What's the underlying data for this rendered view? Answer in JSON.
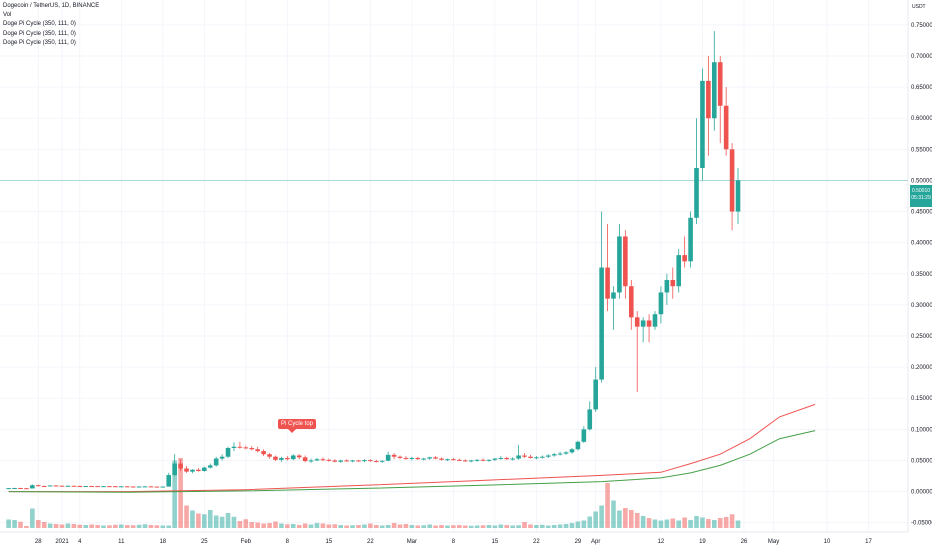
{
  "header": {
    "symbol_line": "Dogecoin / TetherUS, 1D, BINANCE",
    "indicators": [
      "Vol",
      "Doge Pi Cycle (350, 111, 0)",
      "Doge Pi Cycle (350, 111, 0)",
      "Doge Pi Cycle (350, 111, 0)"
    ]
  },
  "price_axis": {
    "unit": "USDT",
    "current_price": "0.50010",
    "countdown": "05:31:29"
  },
  "signal_label": "Pi Cycle top",
  "colors": {
    "up": "#26a69a",
    "down": "#ef5350",
    "ma_red": "#ef5350",
    "ma_green": "#43a047",
    "grid": "#f0f3fa",
    "price_line": "#26a69a"
  },
  "chart_data": {
    "type": "candlestick",
    "ylim": [
      -0.065,
      0.79
    ],
    "y_ticks": [
      "0.75000",
      "0.70000",
      "0.65000",
      "0.60000",
      "0.55000",
      "0.50000",
      "0.45000",
      "0.40000",
      "0.35000",
      "0.30000",
      "0.25000",
      "0.20000",
      "0.15000",
      "0.10000",
      "0.05000",
      "0.00000",
      "-0.05000"
    ],
    "x_ticks": [
      "28",
      "2021",
      "4",
      "11",
      "18",
      "25",
      "Feb",
      "8",
      "15",
      "22",
      "Mar",
      "8",
      "15",
      "22",
      "29",
      "Apr",
      "12",
      "19",
      "26",
      "May",
      "10",
      "17"
    ],
    "x_tick_days": [
      -4,
      0,
      3,
      10,
      17,
      24,
      31,
      38,
      45,
      52,
      59,
      66,
      73,
      80,
      87,
      90,
      101,
      108,
      115,
      120,
      129,
      136
    ],
    "candles": [
      [
        0.0048,
        0.0057,
        0.0046,
        0.0055
      ],
      [
        0.0055,
        0.0062,
        0.0051,
        0.0057
      ],
      [
        0.0057,
        0.0061,
        0.0052,
        0.0054
      ],
      [
        0.0054,
        0.0058,
        0.0048,
        0.005
      ],
      [
        0.005,
        0.0115,
        0.0049,
        0.0102
      ],
      [
        0.0102,
        0.0112,
        0.0082,
        0.009
      ],
      [
        0.009,
        0.0096,
        0.0084,
        0.0088
      ],
      [
        0.0088,
        0.0101,
        0.0086,
        0.0098
      ],
      [
        0.0098,
        0.0103,
        0.009,
        0.0094
      ],
      [
        0.0094,
        0.0097,
        0.0088,
        0.0091
      ],
      [
        0.0091,
        0.0095,
        0.0087,
        0.0093
      ],
      [
        0.0093,
        0.0096,
        0.0089,
        0.009
      ],
      [
        0.009,
        0.0094,
        0.0085,
        0.0087
      ],
      [
        0.0087,
        0.0091,
        0.0083,
        0.0089
      ],
      [
        0.0089,
        0.0093,
        0.0086,
        0.0088
      ],
      [
        0.0088,
        0.0091,
        0.0083,
        0.0085
      ],
      [
        0.0085,
        0.0089,
        0.0082,
        0.0087
      ],
      [
        0.0087,
        0.009,
        0.0084,
        0.0086
      ],
      [
        0.0086,
        0.0089,
        0.008,
        0.0082
      ],
      [
        0.0082,
        0.0086,
        0.0078,
        0.0084
      ],
      [
        0.0084,
        0.0087,
        0.008,
        0.0081
      ],
      [
        0.0081,
        0.0084,
        0.0077,
        0.0079
      ],
      [
        0.0079,
        0.0083,
        0.0075,
        0.0081
      ],
      [
        0.0081,
        0.0085,
        0.0078,
        0.0083
      ],
      [
        0.0083,
        0.0086,
        0.0079,
        0.008
      ],
      [
        0.008,
        0.0083,
        0.0076,
        0.0078
      ],
      [
        0.0078,
        0.0082,
        0.0074,
        0.008
      ],
      [
        0.008,
        0.03,
        0.0078,
        0.0265
      ],
      [
        0.0265,
        0.06,
        0.0245,
        0.045
      ],
      [
        0.045,
        0.052,
        0.033,
        0.037
      ],
      [
        0.037,
        0.041,
        0.03,
        0.032
      ],
      [
        0.032,
        0.036,
        0.0295,
        0.035
      ],
      [
        0.035,
        0.038,
        0.032,
        0.033
      ],
      [
        0.033,
        0.04,
        0.032,
        0.0385
      ],
      [
        0.0385,
        0.045,
        0.037,
        0.042
      ],
      [
        0.042,
        0.056,
        0.04,
        0.053
      ],
      [
        0.053,
        0.06,
        0.05,
        0.056
      ],
      [
        0.056,
        0.072,
        0.054,
        0.07
      ],
      [
        0.07,
        0.079,
        0.065,
        0.072
      ],
      [
        0.072,
        0.08,
        0.069,
        0.071
      ],
      [
        0.071,
        0.074,
        0.068,
        0.07
      ],
      [
        0.07,
        0.073,
        0.066,
        0.068
      ],
      [
        0.068,
        0.072,
        0.063,
        0.065
      ],
      [
        0.065,
        0.068,
        0.057,
        0.06
      ],
      [
        0.06,
        0.062,
        0.053,
        0.056
      ],
      [
        0.056,
        0.058,
        0.049,
        0.051
      ],
      [
        0.051,
        0.056,
        0.048,
        0.054
      ],
      [
        0.054,
        0.057,
        0.05,
        0.052
      ],
      [
        0.052,
        0.06,
        0.0505,
        0.058
      ],
      [
        0.058,
        0.06,
        0.052,
        0.055
      ],
      [
        0.055,
        0.058,
        0.047,
        0.049
      ],
      [
        0.049,
        0.053,
        0.046,
        0.05
      ],
      [
        0.05,
        0.054,
        0.049,
        0.052
      ],
      [
        0.052,
        0.055,
        0.049,
        0.051
      ],
      [
        0.051,
        0.053,
        0.048,
        0.05
      ],
      [
        0.05,
        0.052,
        0.047,
        0.048
      ],
      [
        0.048,
        0.051,
        0.046,
        0.05
      ],
      [
        0.05,
        0.052,
        0.048,
        0.049
      ],
      [
        0.049,
        0.051,
        0.047,
        0.05
      ],
      [
        0.05,
        0.051,
        0.048,
        0.049
      ],
      [
        0.049,
        0.052,
        0.047,
        0.0505
      ],
      [
        0.0505,
        0.052,
        0.048,
        0.049
      ],
      [
        0.049,
        0.051,
        0.047,
        0.048
      ],
      [
        0.048,
        0.05,
        0.046,
        0.0495
      ],
      [
        0.0495,
        0.064,
        0.0485,
        0.059
      ],
      [
        0.059,
        0.062,
        0.052,
        0.056
      ],
      [
        0.056,
        0.058,
        0.052,
        0.054
      ],
      [
        0.054,
        0.057,
        0.051,
        0.053
      ],
      [
        0.053,
        0.056,
        0.05,
        0.054
      ],
      [
        0.054,
        0.056,
        0.051,
        0.052
      ],
      [
        0.052,
        0.054,
        0.05,
        0.053
      ],
      [
        0.053,
        0.056,
        0.051,
        0.055
      ],
      [
        0.055,
        0.057,
        0.052,
        0.053
      ],
      [
        0.053,
        0.055,
        0.05,
        0.051
      ],
      [
        0.051,
        0.053,
        0.049,
        0.052
      ],
      [
        0.052,
        0.054,
        0.05,
        0.051
      ],
      [
        0.051,
        0.053,
        0.049,
        0.05
      ],
      [
        0.05,
        0.052,
        0.048,
        0.049
      ],
      [
        0.049,
        0.051,
        0.047,
        0.05
      ],
      [
        0.05,
        0.052,
        0.048,
        0.051
      ],
      [
        0.051,
        0.053,
        0.049,
        0.05
      ],
      [
        0.05,
        0.052,
        0.048,
        0.051
      ],
      [
        0.051,
        0.054,
        0.049,
        0.053
      ],
      [
        0.053,
        0.057,
        0.051,
        0.054
      ],
      [
        0.054,
        0.056,
        0.051,
        0.052
      ],
      [
        0.052,
        0.055,
        0.05,
        0.053
      ],
      [
        0.053,
        0.075,
        0.051,
        0.058
      ],
      [
        0.058,
        0.062,
        0.054,
        0.056
      ],
      [
        0.056,
        0.059,
        0.053,
        0.054
      ],
      [
        0.054,
        0.057,
        0.052,
        0.055
      ],
      [
        0.055,
        0.058,
        0.053,
        0.056
      ],
      [
        0.056,
        0.06,
        0.054,
        0.058
      ],
      [
        0.058,
        0.062,
        0.056,
        0.06
      ],
      [
        0.06,
        0.064,
        0.058,
        0.061
      ],
      [
        0.061,
        0.065,
        0.059,
        0.063
      ],
      [
        0.063,
        0.07,
        0.061,
        0.068
      ],
      [
        0.068,
        0.082,
        0.066,
        0.08
      ],
      [
        0.08,
        0.105,
        0.078,
        0.1
      ],
      [
        0.1,
        0.145,
        0.098,
        0.132
      ],
      [
        0.132,
        0.2,
        0.128,
        0.18
      ],
      [
        0.18,
        0.45,
        0.175,
        0.36
      ],
      [
        0.36,
        0.43,
        0.29,
        0.31
      ],
      [
        0.31,
        0.33,
        0.26,
        0.32
      ],
      [
        0.32,
        0.43,
        0.31,
        0.41
      ],
      [
        0.41,
        0.42,
        0.31,
        0.33
      ],
      [
        0.33,
        0.34,
        0.26,
        0.28
      ],
      [
        0.28,
        0.29,
        0.16,
        0.265
      ],
      [
        0.265,
        0.28,
        0.24,
        0.275
      ],
      [
        0.275,
        0.285,
        0.24,
        0.265
      ],
      [
        0.265,
        0.29,
        0.26,
        0.285
      ],
      [
        0.285,
        0.33,
        0.27,
        0.32
      ],
      [
        0.32,
        0.35,
        0.3,
        0.34
      ],
      [
        0.34,
        0.36,
        0.31,
        0.33
      ],
      [
        0.33,
        0.39,
        0.32,
        0.38
      ],
      [
        0.38,
        0.41,
        0.36,
        0.37
      ],
      [
        0.37,
        0.45,
        0.36,
        0.44
      ],
      [
        0.44,
        0.6,
        0.43,
        0.52
      ],
      [
        0.52,
        0.68,
        0.5,
        0.66
      ],
      [
        0.66,
        0.7,
        0.54,
        0.6
      ],
      [
        0.6,
        0.74,
        0.58,
        0.69
      ],
      [
        0.69,
        0.7,
        0.56,
        0.62
      ],
      [
        0.62,
        0.65,
        0.54,
        0.55
      ],
      [
        0.55,
        0.56,
        0.42,
        0.45
      ],
      [
        0.45,
        0.52,
        0.43,
        0.5001
      ]
    ],
    "volume_rel": [
      0.34,
      0.32,
      0.25,
      0.08,
      0.78,
      0.32,
      0.24,
      0.18,
      0.16,
      0.14,
      0.18,
      0.16,
      0.13,
      0.12,
      0.14,
      0.12,
      0.1,
      0.11,
      0.13,
      0.14,
      0.12,
      0.11,
      0.13,
      0.15,
      0.12,
      0.11,
      0.1,
      0.1,
      2.7,
      2.8,
      0.9,
      0.7,
      0.58,
      0.55,
      0.72,
      0.5,
      0.45,
      0.6,
      0.45,
      0.28,
      0.35,
      0.24,
      0.22,
      0.18,
      0.2,
      0.26,
      0.18,
      0.15,
      0.16,
      0.12,
      0.18,
      0.14,
      0.2,
      0.18,
      0.14,
      0.15,
      0.12,
      0.1,
      0.11,
      0.12,
      0.14,
      0.18,
      0.12,
      0.1,
      0.12,
      0.2,
      0.14,
      0.16,
      0.12,
      0.1,
      0.11,
      0.14,
      0.1,
      0.12,
      0.1,
      0.11,
      0.12,
      0.1,
      0.09,
      0.1,
      0.11,
      0.12,
      0.1,
      0.14,
      0.12,
      0.1,
      0.11,
      0.24,
      0.14,
      0.12,
      0.13,
      0.1,
      0.12,
      0.14,
      0.16,
      0.2,
      0.26,
      0.3,
      0.46,
      0.66,
      0.9,
      1.8,
      1.1,
      0.7,
      0.8,
      0.72,
      0.6,
      0.48,
      0.4,
      0.34,
      0.3,
      0.34,
      0.38,
      0.3,
      0.42,
      0.32,
      0.48,
      0.42,
      0.36,
      0.32,
      0.4,
      0.44,
      0.55,
      0.3
    ],
    "ma_red": [
      [
        0,
        0.0
      ],
      [
        20,
        0.0
      ],
      [
        40,
        0.003
      ],
      [
        60,
        0.01
      ],
      [
        80,
        0.018
      ],
      [
        100,
        0.026
      ],
      [
        110,
        0.031
      ],
      [
        115,
        0.045
      ],
      [
        120,
        0.06
      ],
      [
        125,
        0.085
      ],
      [
        130,
        0.12
      ],
      [
        136,
        0.14
      ]
    ],
    "ma_green": [
      [
        0,
        0.0
      ],
      [
        20,
        -0.001
      ],
      [
        40,
        0.001
      ],
      [
        60,
        0.005
      ],
      [
        80,
        0.01
      ],
      [
        100,
        0.016
      ],
      [
        110,
        0.022
      ],
      [
        115,
        0.03
      ],
      [
        120,
        0.042
      ],
      [
        125,
        0.06
      ],
      [
        130,
        0.085
      ],
      [
        136,
        0.098
      ]
    ]
  }
}
